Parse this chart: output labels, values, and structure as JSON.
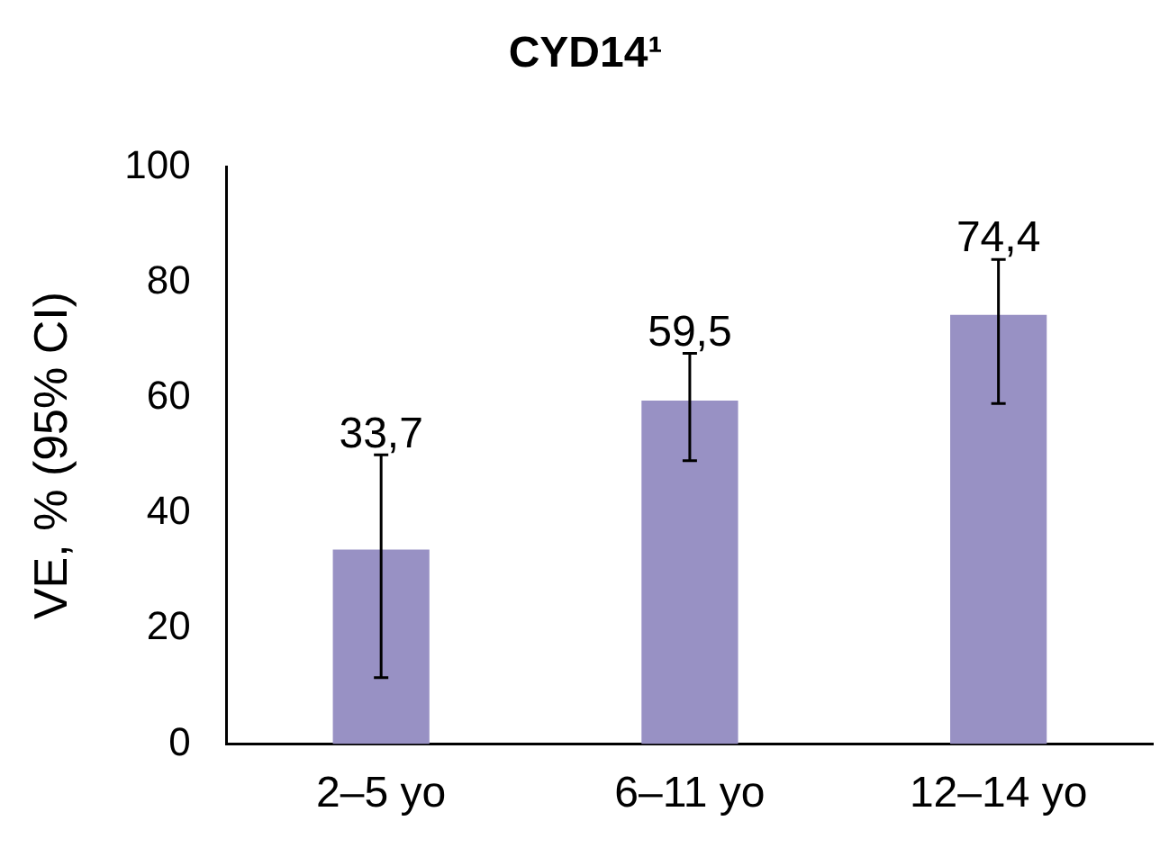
{
  "chart_data": {
    "type": "bar",
    "title": "CYD14¹",
    "ylabel": "VE, % (95% CI)",
    "categories": [
      "2–5 yo",
      "6–11 yo",
      "12–14 yo"
    ],
    "values": [
      33.7,
      59.5,
      74.4
    ],
    "color": "#9891c4",
    "errors": [
      [
        11.5,
        50.1
      ],
      [
        49.1,
        67.7
      ],
      [
        59.0,
        84.0
      ]
    ],
    "value_labels": [
      "33,7",
      "59,5",
      "74,4"
    ],
    "ylim": [
      0,
      100
    ],
    "yticks": [
      0,
      20,
      40,
      60,
      80,
      100
    ],
    "grid": false,
    "legend": false
  }
}
